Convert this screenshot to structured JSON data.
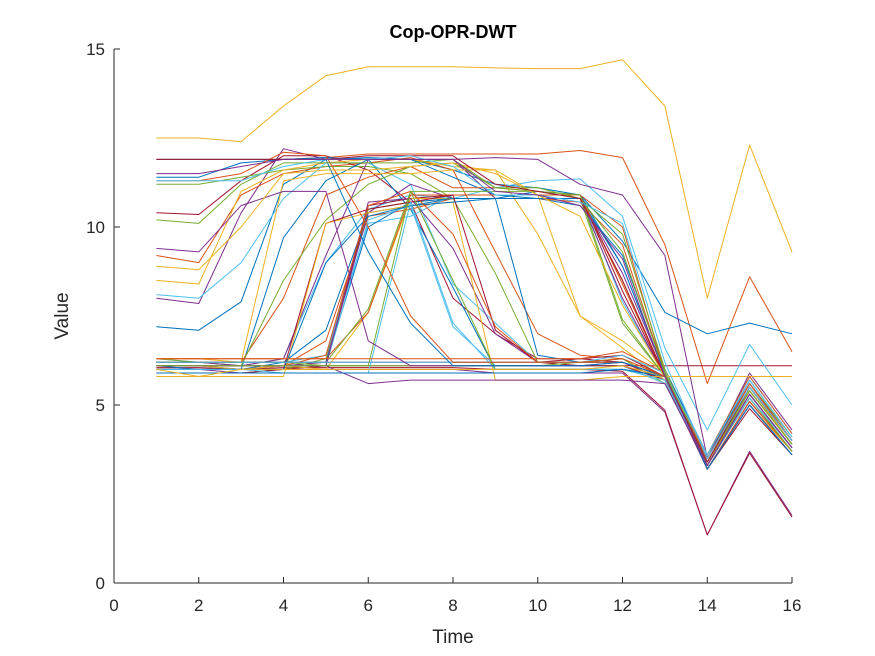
{
  "chart_data": {
    "type": "line",
    "title": "Cop-OPR-DWT",
    "xlabel": "Time",
    "ylabel": "Value",
    "xlim": [
      0,
      16
    ],
    "ylim": [
      0,
      15
    ],
    "xticks": [
      0,
      2,
      4,
      6,
      8,
      10,
      12,
      14,
      16
    ],
    "yticks": [
      0,
      5,
      10,
      15
    ],
    "grid": false,
    "legend": "none",
    "x": [
      1,
      2,
      3,
      4,
      5,
      6,
      7,
      8,
      9,
      10,
      11,
      12,
      13,
      14,
      15,
      16
    ],
    "series": [
      {
        "color": "#EDB120",
        "values": [
          12.5,
          12.5,
          12.4,
          13.4,
          14.25,
          14.5,
          14.5,
          14.5,
          14.47,
          14.45,
          14.45,
          14.7,
          13.4,
          8.0,
          12.3,
          9.3
        ]
      },
      {
        "color": "#D95319",
        "values": [
          11.9,
          11.9,
          11.9,
          11.9,
          11.95,
          12.05,
          12.05,
          12.05,
          12.05,
          12.05,
          12.15,
          11.95,
          9.5,
          5.6,
          8.6,
          6.5
        ]
      },
      {
        "color": "#A2142F",
        "values": [
          6.1,
          6.1,
          6.1,
          6.1,
          6.1,
          6.1,
          6.1,
          6.1,
          6.1,
          6.1,
          6.1,
          6.1,
          6.1,
          6.1,
          6.1,
          6.1
        ]
      },
      {
        "color": "#0072BD",
        "values": [
          7.2,
          7.1,
          7.9,
          11.2,
          11.9,
          11.95,
          11.9,
          11.6,
          11.2,
          11.1,
          10.9,
          9.6,
          7.6,
          7.0,
          7.3,
          7.0
        ]
      },
      {
        "color": "#4DBEEE",
        "values": [
          6.3,
          6.2,
          6.1,
          6.3,
          9.0,
          10.5,
          10.9,
          10.8,
          11.1,
          11.3,
          11.35,
          10.3,
          6.6,
          4.3,
          6.7,
          5.0
        ]
      },
      {
        "color": "#7E2F8E",
        "values": [
          6.0,
          6.0,
          5.9,
          6.0,
          6.0,
          6.0,
          6.0,
          6.0,
          5.9,
          5.9,
          5.9,
          5.9,
          4.8,
          1.35,
          3.7,
          1.9
        ]
      },
      {
        "color": "#A2142F",
        "values": [
          6.05,
          6.05,
          6.0,
          6.05,
          6.05,
          6.05,
          6.05,
          6.05,
          6.0,
          6.0,
          6.0,
          5.95,
          4.85,
          1.35,
          3.65,
          1.85
        ]
      },
      {
        "color": "#7E2F8E",
        "values": [
          8.0,
          7.85,
          10.4,
          12.2,
          11.9,
          11.9,
          11.9,
          11.9,
          11.95,
          11.9,
          11.2,
          10.9,
          9.2,
          3.5,
          5.9,
          4.3
        ]
      },
      {
        "color": "#D95319",
        "values": [
          9.2,
          9.0,
          10.9,
          11.5,
          11.7,
          11.8,
          11.95,
          11.6,
          9.3,
          7.0,
          6.4,
          6.3,
          5.8,
          3.4,
          5.6,
          4.0
        ]
      },
      {
        "color": "#A2142F",
        "values": [
          10.4,
          10.35,
          11.3,
          12.0,
          12.0,
          11.6,
          10.7,
          8.0,
          7.0,
          6.3,
          6.3,
          6.2,
          5.7,
          3.3,
          5.5,
          3.9
        ]
      },
      {
        "color": "#0072BD",
        "values": [
          11.9,
          11.9,
          11.9,
          11.9,
          11.95,
          11.9,
          10.5,
          8.3,
          6.0,
          6.0,
          6.0,
          6.0,
          5.8,
          3.5,
          5.7,
          4.1
        ]
      },
      {
        "color": "#77AC30",
        "values": [
          11.2,
          11.2,
          11.4,
          11.6,
          11.7,
          11.7,
          11.5,
          10.8,
          8.7,
          6.2,
          6.2,
          6.3,
          5.6,
          3.3,
          5.4,
          3.9
        ]
      },
      {
        "color": "#EDB120",
        "values": [
          8.5,
          8.4,
          11.0,
          11.6,
          11.8,
          11.9,
          11.9,
          11.7,
          11.6,
          9.8,
          7.5,
          6.6,
          5.7,
          3.3,
          5.5,
          3.9
        ]
      },
      {
        "color": "#4DBEEE",
        "values": [
          8.1,
          8.0,
          9.0,
          10.8,
          11.8,
          11.8,
          11.2,
          8.4,
          7.3,
          6.2,
          6.1,
          6.1,
          5.6,
          3.4,
          5.5,
          4.0
        ]
      },
      {
        "color": "#0072BD",
        "values": [
          6.1,
          6.0,
          6.0,
          9.7,
          11.3,
          11.9,
          11.9,
          11.4,
          10.9,
          10.8,
          10.6,
          9.2,
          6.0,
          3.6,
          5.8,
          4.2
        ]
      },
      {
        "color": "#D95319",
        "values": [
          6.2,
          6.2,
          6.2,
          8.0,
          10.9,
          11.4,
          11.7,
          11.1,
          11.1,
          11.0,
          10.9,
          10.0,
          5.9,
          3.5,
          5.6,
          4.0
        ]
      },
      {
        "color": "#77AC30",
        "values": [
          6.3,
          6.2,
          6.1,
          8.5,
          10.2,
          11.2,
          11.7,
          11.8,
          11.1,
          11.0,
          10.8,
          9.8,
          6.0,
          3.4,
          5.4,
          3.9
        ]
      },
      {
        "color": "#7E2F8E",
        "values": [
          6.2,
          6.2,
          6.1,
          6.3,
          9.2,
          11.9,
          11.9,
          11.9,
          10.8,
          10.8,
          10.8,
          8.7,
          5.9,
          3.3,
          5.3,
          3.8
        ]
      },
      {
        "color": "#EDB120",
        "values": [
          6.3,
          6.3,
          6.2,
          11.3,
          11.5,
          11.5,
          11.5,
          11.6,
          11.6,
          10.9,
          7.5,
          6.8,
          5.9,
          3.3,
          5.3,
          3.8
        ]
      },
      {
        "color": "#0072BD",
        "values": [
          6.1,
          6.1,
          6.0,
          6.2,
          7.1,
          10.4,
          10.6,
          10.8,
          10.8,
          11.0,
          10.9,
          8.9,
          5.9,
          3.3,
          5.3,
          3.8
        ]
      },
      {
        "color": "#D95319",
        "values": [
          6.0,
          6.0,
          6.0,
          6.1,
          6.8,
          10.3,
          10.5,
          10.8,
          10.8,
          10.8,
          10.7,
          9.5,
          5.9,
          3.3,
          5.3,
          3.8
        ]
      },
      {
        "color": "#77AC30",
        "values": [
          5.9,
          5.9,
          5.9,
          6.0,
          6.3,
          10.5,
          10.7,
          10.8,
          10.8,
          10.8,
          10.8,
          7.3,
          5.8,
          3.3,
          5.2,
          3.7
        ]
      },
      {
        "color": "#4DBEEE",
        "values": [
          6.2,
          6.2,
          6.2,
          6.2,
          6.4,
          10.1,
          10.3,
          10.9,
          10.9,
          10.9,
          10.9,
          7.9,
          5.8,
          3.3,
          5.2,
          3.7
        ]
      },
      {
        "color": "#7E2F8E",
        "values": [
          6.0,
          6.0,
          6.0,
          6.1,
          6.2,
          10.4,
          11.2,
          10.8,
          10.8,
          10.8,
          10.8,
          8.0,
          5.8,
          3.2,
          5.1,
          3.7
        ]
      },
      {
        "color": "#A2142F",
        "values": [
          5.9,
          5.9,
          5.9,
          6.0,
          6.1,
          10.6,
          10.8,
          10.9,
          10.9,
          10.9,
          10.9,
          8.2,
          5.8,
          3.2,
          5.1,
          3.7
        ]
      },
      {
        "color": "#EDB120",
        "values": [
          6.1,
          6.1,
          6.0,
          6.1,
          6.0,
          7.6,
          10.8,
          10.8,
          10.8,
          10.8,
          10.8,
          8.5,
          5.8,
          3.2,
          5.0,
          3.7
        ]
      },
      {
        "color": "#0072BD",
        "values": [
          6.2,
          6.2,
          6.2,
          6.2,
          6.2,
          10.0,
          10.7,
          10.8,
          10.8,
          10.8,
          10.8,
          8.9,
          5.9,
          3.3,
          5.3,
          3.8
        ]
      },
      {
        "color": "#D95319",
        "values": [
          6.3,
          6.3,
          6.3,
          6.3,
          6.3,
          7.6,
          10.9,
          10.9,
          10.9,
          10.9,
          10.9,
          8.4,
          5.8,
          3.2,
          5.1,
          3.7
        ]
      },
      {
        "color": "#77AC30",
        "values": [
          6.2,
          6.2,
          6.2,
          6.2,
          6.2,
          7.7,
          11.0,
          11.0,
          11.0,
          11.0,
          10.9,
          7.4,
          5.8,
          3.2,
          5.0,
          3.6
        ]
      },
      {
        "color": "#4DBEEE",
        "values": [
          6.1,
          6.1,
          6.1,
          6.1,
          6.1,
          10.2,
          10.6,
          7.2,
          6.1,
          6.1,
          6.1,
          6.1,
          5.8,
          3.2,
          5.0,
          3.6
        ]
      },
      {
        "color": "#7E2F8E",
        "values": [
          6.1,
          6.1,
          6.1,
          6.1,
          6.1,
          10.7,
          10.8,
          9.4,
          7.0,
          6.2,
          6.2,
          6.2,
          5.8,
          3.2,
          5.0,
          3.6
        ]
      },
      {
        "color": "#A2142F",
        "values": [
          6.0,
          6.0,
          6.0,
          6.0,
          10.1,
          10.5,
          10.7,
          10.9,
          7.1,
          6.2,
          6.1,
          6.1,
          5.7,
          3.2,
          4.9,
          3.6
        ]
      },
      {
        "color": "#EDB120",
        "values": [
          5.8,
          5.8,
          5.8,
          5.8,
          10.1,
          10.4,
          10.6,
          10.7,
          5.7,
          5.7,
          5.7,
          5.8,
          5.8,
          5.8,
          5.8,
          5.8
        ]
      },
      {
        "color": "#0072BD",
        "values": [
          6.0,
          6.0,
          6.0,
          6.0,
          9.0,
          10.3,
          10.6,
          10.7,
          10.8,
          6.4,
          6.2,
          6.2,
          5.8,
          3.2,
          5.0,
          3.6
        ]
      },
      {
        "color": "#D95319",
        "values": [
          6.1,
          6.1,
          6.1,
          6.1,
          6.4,
          10.6,
          11.0,
          9.8,
          7.2,
          6.2,
          6.2,
          6.2,
          5.8,
          3.3,
          5.2,
          3.7
        ]
      },
      {
        "color": "#77AC30",
        "values": [
          6.2,
          6.2,
          6.2,
          6.2,
          6.1,
          6.1,
          11.0,
          8.5,
          6.0,
          6.0,
          6.0,
          6.0,
          5.7,
          3.3,
          5.2,
          3.7
        ]
      },
      {
        "color": "#4DBEEE",
        "values": [
          6.0,
          6.0,
          6.0,
          5.9,
          5.9,
          5.9,
          10.7,
          7.3,
          6.0,
          6.0,
          6.0,
          6.0,
          5.7,
          3.3,
          5.2,
          3.8
        ]
      },
      {
        "color": "#7E2F8E",
        "values": [
          6.1,
          6.1,
          6.1,
          6.1,
          6.1,
          5.6,
          5.7,
          5.7,
          5.7,
          5.7,
          5.7,
          5.7,
          5.6,
          3.3,
          5.3,
          3.8
        ]
      },
      {
        "color": "#A2142F",
        "values": [
          6.2,
          6.2,
          6.2,
          6.2,
          6.2,
          6.2,
          6.2,
          6.2,
          6.2,
          6.2,
          6.3,
          6.4,
          5.8,
          3.4,
          5.4,
          3.9
        ]
      },
      {
        "color": "#0072BD",
        "values": [
          5.9,
          5.9,
          5.9,
          5.9,
          5.9,
          5.9,
          5.9,
          5.9,
          5.9,
          5.9,
          5.9,
          6.0,
          5.8,
          3.5,
          5.6,
          4.0
        ]
      },
      {
        "color": "#D95319",
        "values": [
          6.3,
          6.3,
          6.3,
          6.3,
          6.3,
          6.3,
          6.3,
          6.3,
          6.3,
          6.3,
          6.3,
          6.5,
          5.9,
          3.6,
          5.8,
          4.2
        ]
      },
      {
        "color": "#EDB120",
        "values": [
          6.0,
          5.8,
          6.0,
          6.0,
          6.0,
          6.0,
          6.0,
          6.0,
          6.0,
          6.0,
          6.0,
          6.1,
          5.8,
          3.4,
          5.5,
          4.0
        ]
      },
      {
        "color": "#77AC30",
        "values": [
          6.1,
          6.1,
          6.1,
          6.1,
          6.1,
          6.1,
          6.1,
          6.1,
          6.1,
          6.1,
          6.2,
          6.3,
          5.8,
          3.5,
          5.6,
          4.1
        ]
      },
      {
        "color": "#4DBEEE",
        "values": [
          6.2,
          6.2,
          6.2,
          6.2,
          6.2,
          6.2,
          6.2,
          6.2,
          6.2,
          6.2,
          6.2,
          6.4,
          5.9,
          3.6,
          5.7,
          4.1
        ]
      },
      {
        "color": "#7E2F8E",
        "values": [
          9.4,
          9.3,
          10.6,
          11.0,
          11.0,
          6.8,
          6.1,
          6.1,
          6.1,
          6.1,
          6.1,
          6.2,
          5.8,
          3.5,
          5.6,
          4.0
        ]
      },
      {
        "color": "#0072BD",
        "values": [
          11.4,
          11.4,
          11.8,
          11.9,
          11.9,
          9.3,
          7.3,
          6.1,
          6.1,
          6.1,
          6.1,
          6.2,
          5.8,
          3.4,
          5.5,
          4.0
        ]
      },
      {
        "color": "#D95319",
        "values": [
          11.3,
          11.3,
          11.5,
          12.1,
          12.0,
          10.0,
          7.5,
          6.2,
          6.2,
          6.2,
          6.2,
          6.3,
          5.8,
          3.5,
          5.6,
          4.0
        ]
      },
      {
        "color": "#EDB120",
        "values": [
          8.9,
          8.8,
          10.0,
          11.5,
          11.6,
          11.6,
          11.7,
          11.8,
          11.5,
          10.9,
          10.3,
          7.8,
          5.8,
          3.4,
          5.4,
          3.9
        ]
      },
      {
        "color": "#77AC30",
        "values": [
          10.2,
          10.1,
          11.2,
          11.8,
          11.8,
          11.8,
          11.8,
          11.9,
          11.1,
          11.1,
          10.8,
          9.3,
          5.9,
          3.4,
          5.4,
          3.9
        ]
      },
      {
        "color": "#A2142F",
        "values": [
          11.9,
          11.9,
          11.9,
          11.9,
          11.9,
          12.0,
          12.0,
          12.0,
          11.2,
          11.0,
          10.8,
          8.5,
          5.8,
          3.4,
          5.5,
          4.0
        ]
      },
      {
        "color": "#4DBEEE",
        "values": [
          11.3,
          11.3,
          11.3,
          11.7,
          11.9,
          11.9,
          12.0,
          11.7,
          10.9,
          10.9,
          10.7,
          10.1,
          6.2,
          3.5,
          5.5,
          4.0
        ]
      },
      {
        "color": "#7E2F8E",
        "values": [
          11.5,
          11.5,
          11.7,
          11.9,
          11.9,
          11.9,
          11.9,
          11.9,
          11.0,
          10.9,
          10.6,
          9.1,
          5.8,
          3.3,
          5.3,
          3.8
        ]
      }
    ]
  }
}
